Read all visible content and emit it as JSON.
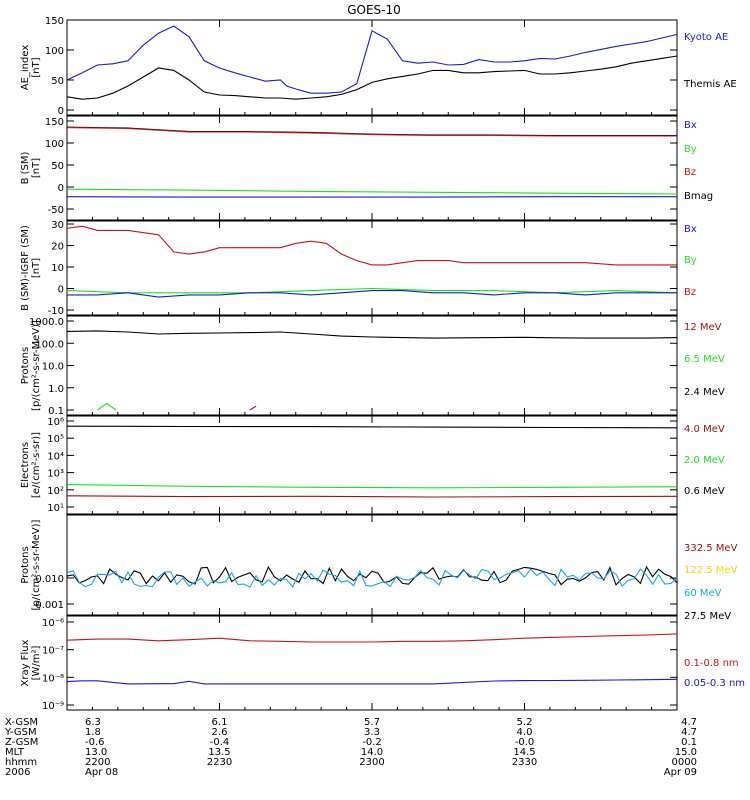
{
  "title": "GOES-10",
  "colors": {
    "black": "#000000",
    "blue": "#1a1ad0",
    "green": "#1ee01e",
    "red": "#c81414",
    "darkred": "#a01010",
    "cyan": "#1aa8e0",
    "yellow": "#f0d800"
  },
  "chart_data": [
    {
      "type": "line",
      "panel": "ae",
      "ylabel": [
        "AE_index",
        "[nT]"
      ],
      "yscale": "linear",
      "ylim": [
        0,
        150
      ],
      "yticks": [
        "0",
        "50",
        "100",
        "150"
      ],
      "series": [
        {
          "name": "Kyoto AE",
          "color": "blue",
          "x": [
            0,
            5,
            10,
            15,
            20,
            25,
            30,
            35,
            40,
            45,
            50,
            55,
            60,
            65,
            70,
            72,
            75,
            80,
            85,
            90,
            95,
            100,
            105,
            110,
            115,
            120,
            125,
            130,
            135,
            140,
            145,
            150,
            155,
            160,
            165,
            170,
            175,
            180,
            185,
            190,
            195,
            200
          ],
          "y": [
            50,
            62,
            75,
            77,
            82,
            108,
            128,
            140,
            122,
            82,
            70,
            62,
            55,
            48,
            50,
            40,
            35,
            28,
            28,
            30,
            44,
            132,
            118,
            82,
            78,
            80,
            75,
            76,
            84,
            80,
            80,
            82,
            86,
            85,
            90,
            96,
            101,
            106,
            110,
            114,
            120,
            126
          ]
        },
        {
          "name": "Themis AE",
          "color": "black",
          "x": [
            0,
            5,
            10,
            15,
            20,
            25,
            30,
            35,
            40,
            45,
            50,
            55,
            60,
            65,
            70,
            75,
            80,
            85,
            90,
            95,
            100,
            105,
            110,
            115,
            120,
            125,
            130,
            135,
            140,
            145,
            150,
            155,
            160,
            165,
            170,
            175,
            180,
            185,
            190,
            195,
            200
          ],
          "y": [
            22,
            18,
            20,
            28,
            40,
            55,
            70,
            66,
            50,
            30,
            25,
            24,
            22,
            20,
            20,
            18,
            20,
            22,
            26,
            34,
            46,
            52,
            56,
            60,
            66,
            66,
            62,
            62,
            64,
            65,
            66,
            60,
            60,
            62,
            65,
            68,
            72,
            78,
            82,
            86,
            90
          ]
        }
      ]
    },
    {
      "type": "line",
      "panel": "b_sm",
      "ylabel": [
        "B (SM)",
        "[nT]"
      ],
      "yscale": "linear",
      "ylim": [
        -50,
        150
      ],
      "yticks": [
        "-50",
        "0",
        "50",
        "100",
        "150"
      ],
      "legend": [
        {
          "name": "Bx",
          "color": "blue"
        },
        {
          "name": "By",
          "color": "green"
        },
        {
          "name": "Bz",
          "color": "red"
        },
        {
          "name": "Bmag",
          "color": "black"
        }
      ],
      "series": [
        {
          "name": "Bmag",
          "color": "black",
          "x": [
            0,
            20,
            40,
            60,
            80,
            100,
            120,
            140,
            160,
            180,
            200
          ],
          "y": [
            136,
            134,
            126,
            126,
            124,
            120,
            118,
            118,
            117,
            117,
            117
          ]
        },
        {
          "name": "Bz",
          "color": "red",
          "x": [
            0,
            20,
            40,
            60,
            80,
            100,
            120,
            140,
            160,
            180,
            200
          ],
          "y": [
            135,
            133,
            125,
            125,
            123,
            119,
            117,
            117,
            116,
            116,
            116
          ]
        },
        {
          "name": "By",
          "color": "green",
          "x": [
            0,
            40,
            80,
            120,
            160,
            200
          ],
          "y": [
            -5,
            -7,
            -10,
            -12,
            -14,
            -16
          ]
        },
        {
          "name": "Bx",
          "color": "blue",
          "x": [
            0,
            40,
            80,
            120,
            160,
            200
          ],
          "y": [
            -22,
            -23,
            -23,
            -23,
            -22,
            -22
          ]
        }
      ]
    },
    {
      "type": "line",
      "panel": "b_grf",
      "ylabel": [
        "B (SM)-IGRF (SM)",
        "[nT]"
      ],
      "yscale": "linear",
      "ylim": [
        -10,
        30
      ],
      "yticks": [
        "-10",
        "0",
        "10",
        "20",
        "30"
      ],
      "legend": [
        {
          "name": "Bx",
          "color": "blue"
        },
        {
          "name": "By",
          "color": "green"
        },
        {
          "name": "Bz",
          "color": "red"
        }
      ],
      "series": [
        {
          "name": "Bz",
          "color": "red",
          "x": [
            0,
            5,
            10,
            15,
            20,
            30,
            35,
            40,
            45,
            50,
            55,
            60,
            65,
            70,
            75,
            80,
            85,
            90,
            95,
            100,
            105,
            110,
            115,
            120,
            125,
            130,
            140,
            150,
            160,
            170,
            180,
            190,
            200
          ],
          "y": [
            28,
            29,
            27,
            27,
            27,
            25,
            17,
            16,
            17,
            19,
            19,
            19,
            19,
            19,
            21,
            22,
            21,
            16,
            13,
            11,
            11,
            12,
            13,
            13,
            13,
            12,
            12,
            12,
            12,
            12,
            11,
            11,
            11
          ]
        },
        {
          "name": "By",
          "color": "green",
          "x": [
            0,
            20,
            40,
            60,
            80,
            100,
            120,
            140,
            160,
            180,
            200
          ],
          "y": [
            -1,
            -2,
            -2,
            -2,
            -1,
            0,
            -1,
            -1,
            -2,
            -1,
            -2
          ]
        },
        {
          "name": "Bx",
          "color": "blue",
          "x": [
            0,
            10,
            20,
            30,
            40,
            50,
            60,
            70,
            80,
            90,
            100,
            110,
            120,
            130,
            140,
            150,
            160,
            170,
            180,
            190,
            200
          ],
          "y": [
            -3,
            -3,
            -2,
            -4,
            -3,
            -3,
            -2,
            -2,
            -3,
            -2,
            -1,
            -1,
            -2,
            -2,
            -3,
            -2,
            -2,
            -3,
            -2,
            -2,
            -2
          ]
        }
      ]
    },
    {
      "type": "line",
      "panel": "protons",
      "ylabel": [
        "Protons",
        "[p/(cm²-s-sr-MeV)]"
      ],
      "yscale": "log",
      "ylim": [
        0.1,
        1000
      ],
      "yticks": [
        "0.1",
        "1.0",
        "10.0",
        "100.0",
        "1000.0"
      ],
      "legend": [
        {
          "name": "12 MeV",
          "color": "darkred"
        },
        {
          "name": "6.5 MeV",
          "color": "green"
        },
        {
          "name": "2.4 MeV",
          "color": "black"
        }
      ],
      "series": [
        {
          "name": "2.4 MeV",
          "color": "black",
          "x": [
            0,
            10,
            20,
            30,
            40,
            50,
            60,
            70,
            80,
            90,
            100,
            110,
            120,
            130,
            140,
            150,
            160,
            170,
            180,
            190,
            200
          ],
          "y": [
            340,
            360,
            320,
            260,
            280,
            290,
            300,
            320,
            260,
            210,
            190,
            180,
            170,
            175,
            180,
            185,
            175,
            170,
            170,
            170,
            180
          ]
        },
        {
          "name": "6.5 MeV",
          "color": "green",
          "x": [
            10,
            13,
            16
          ],
          "y": [
            0.1,
            0.2,
            0.1
          ]
        },
        {
          "name": "12 MeV",
          "color": "darkred",
          "x": [
            60,
            62
          ],
          "y": [
            0.1,
            0.15
          ]
        }
      ]
    },
    {
      "type": "line",
      "panel": "electrons",
      "ylabel": [
        "Electrons",
        "[e/(cm²-s-sr)]"
      ],
      "yscale": "log",
      "ylim": [
        10,
        1000000
      ],
      "yticks": [
        "10¹",
        "10²",
        "10³",
        "10⁴",
        "10⁵",
        "10⁶"
      ],
      "legend": [
        {
          "name": "4.0 MeV",
          "color": "darkred"
        },
        {
          "name": "2.0 MeV",
          "color": "green"
        },
        {
          "name": "0.6 MeV",
          "color": "black"
        }
      ],
      "series": [
        {
          "name": "0.6 MeV",
          "color": "black",
          "x": [
            0,
            40,
            80,
            120,
            160,
            200
          ],
          "y": [
            500000,
            480000,
            470000,
            440000,
            420000,
            400000
          ]
        },
        {
          "name": "2.0 MeV",
          "color": "green",
          "x": [
            0,
            40,
            80,
            120,
            160,
            200
          ],
          "y": [
            200,
            160,
            140,
            130,
            140,
            150
          ]
        },
        {
          "name": "4.0 MeV",
          "color": "darkred",
          "x": [
            0,
            40,
            80,
            120,
            160,
            200
          ],
          "y": [
            45,
            40,
            42,
            38,
            40,
            42
          ]
        }
      ]
    },
    {
      "type": "line",
      "panel": "hep",
      "ylabel": [
        "Protons",
        "[p/(cm²-s-sr-MeV)]"
      ],
      "yscale": "log",
      "ylim": [
        0.001,
        0.1
      ],
      "yticks": [
        "0.001",
        "0.010"
      ],
      "legend": [
        {
          "name": "332.5 MeV",
          "color": "darkred"
        },
        {
          "name": "122.5 MeV",
          "color": "yellow"
        },
        {
          "name": "60 MeV",
          "color": "cyan"
        },
        {
          "name": "27.5 MeV",
          "color": "black"
        }
      ],
      "series": [
        {
          "name": "27.5 MeV",
          "color": "black"
        },
        {
          "name": "60 MeV",
          "color": "cyan"
        }
      ]
    },
    {
      "type": "line",
      "panel": "xray",
      "ylabel": [
        "Xray Flux",
        "[W/m²]"
      ],
      "yscale": "log",
      "ylim": [
        1e-09,
        1e-06
      ],
      "yticks": [
        "10⁻⁹",
        "10⁻⁸",
        "10⁻⁷",
        "10⁻⁶"
      ],
      "legend": [
        {
          "name": "0.1-0.8 nm",
          "color": "red"
        },
        {
          "name": "0.05-0.3 nm",
          "color": "blue"
        }
      ],
      "series": [
        {
          "name": "0.1-0.8 nm",
          "color": "red",
          "x": [
            0,
            10,
            20,
            30,
            40,
            50,
            60,
            70,
            80,
            90,
            100,
            110,
            120,
            130,
            140,
            150,
            160,
            170,
            180,
            190,
            200
          ],
          "y": [
            2.2e-07,
            2.4e-07,
            2.4e-07,
            2.1e-07,
            2.3e-07,
            2.6e-07,
            2.1e-07,
            2e-07,
            1.9e-07,
            1.9e-07,
            1.9e-07,
            2e-07,
            2e-07,
            2.1e-07,
            2.3e-07,
            2.6e-07,
            2.8e-07,
            3e-07,
            3.2e-07,
            3.4e-07,
            3.7e-07
          ]
        },
        {
          "name": "0.05-0.3 nm",
          "color": "blue",
          "x": [
            0,
            5,
            10,
            20,
            30,
            35,
            40,
            45,
            50,
            55,
            60,
            80,
            100,
            120,
            140,
            150,
            160,
            170,
            180,
            190,
            200
          ],
          "y": [
            7e-09,
            7.5e-09,
            7.5e-09,
            5.8e-09,
            5.9e-09,
            5.9e-09,
            7.2e-09,
            5.8e-09,
            5.8e-09,
            5.8e-09,
            5.8e-09,
            5.8e-09,
            5.8e-09,
            5.8e-09,
            7.4e-09,
            7.6e-09,
            7.7e-09,
            7.8e-09,
            8e-09,
            8.2e-09,
            8.5e-09
          ]
        }
      ]
    }
  ],
  "orbit": {
    "row_labels": [
      "X-GSM",
      "Y-GSM",
      "Z-GSM",
      "MLT",
      "hhmm",
      "2006"
    ],
    "columns": [
      [
        "6.3",
        "1.8",
        "-0.6",
        "13.0",
        "2200",
        "Apr 08"
      ],
      [
        "6.1",
        "2.6",
        "-0.4",
        "13.5",
        "2230",
        ""
      ],
      [
        "5.7",
        "3.3",
        "-0.2",
        "14.0",
        "2300",
        ""
      ],
      [
        "5.2",
        "4.0",
        "-0.0",
        "14.5",
        "2330",
        ""
      ],
      [
        "4.7",
        "4.7",
        "0.1",
        "15.0",
        "0000",
        "Apr 09"
      ]
    ]
  }
}
